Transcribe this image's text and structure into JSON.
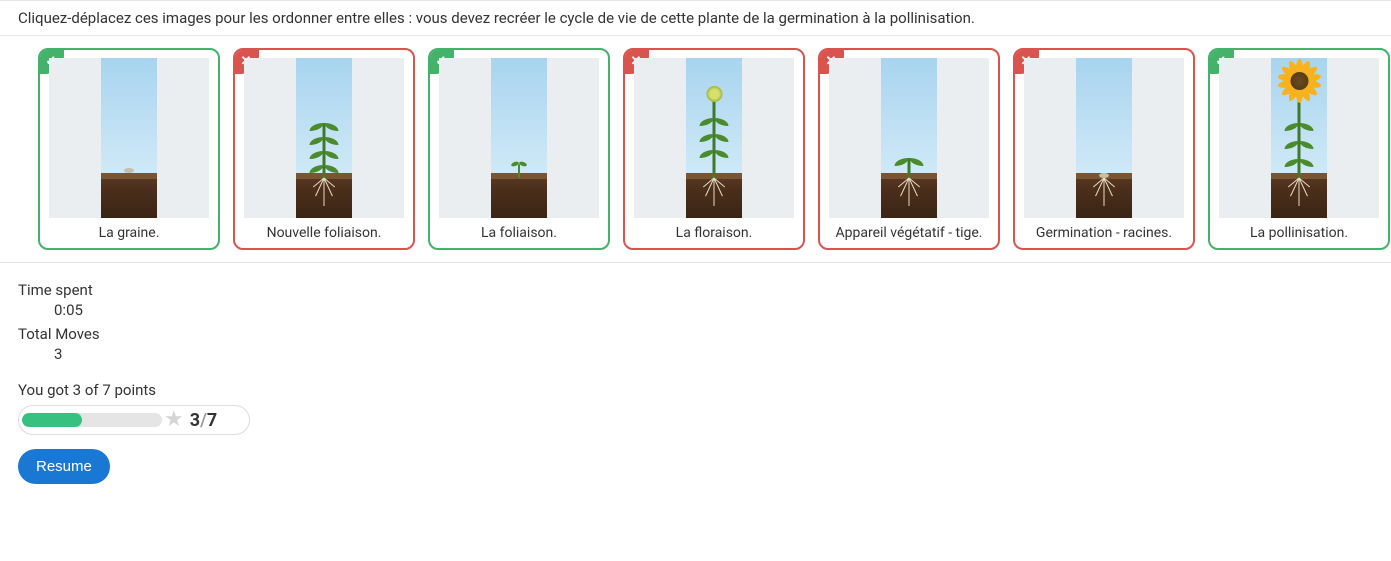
{
  "instructions": "Cliquez-déplacez ces images pour les ordonner entre elles : vous devez recréer le cycle de vie de cette plante de la germination à la pollinisation.",
  "colors": {
    "correct": "#44b26b",
    "wrong": "#d9534f",
    "progress_fill": "#36c181",
    "resume_btn": "#1978d4",
    "sky_top": "#a8d4ef",
    "sky_bottom": "#cfe9f7",
    "soil_top": "#7a5534",
    "soil_mid": "#5b3a23",
    "soil_dark": "#3a2415",
    "stem": "#3f7a2a",
    "leaf": "#4a8b2e",
    "root": "#e8dcc0",
    "sunflower_petal": "#f7b21e",
    "sunflower_center": "#6b4a1f"
  },
  "items": [
    {
      "status": "correct",
      "caption": "La graine.",
      "variant": "seed"
    },
    {
      "status": "wrong",
      "caption": "Nouvelle foliaison.",
      "variant": "leafy"
    },
    {
      "status": "correct",
      "caption": "La foliaison.",
      "variant": "sprout"
    },
    {
      "status": "wrong",
      "caption": "La floraison.",
      "variant": "flowering"
    },
    {
      "status": "wrong",
      "caption": "Appareil végétatif - tige.",
      "variant": "seedling"
    },
    {
      "status": "wrong",
      "caption": "Germination - racines.",
      "variant": "germination"
    },
    {
      "status": "correct",
      "caption": "La pollinisation.",
      "variant": "sunflower"
    }
  ],
  "stats": {
    "time_label": "Time spent",
    "time_value": "0:05",
    "moves_label": "Total Moves",
    "moves_value": "3"
  },
  "score": {
    "line": "You got 3 of 7 points",
    "earned": "3",
    "total": "7",
    "fill_percent": 43
  },
  "resume_label": "Resume"
}
